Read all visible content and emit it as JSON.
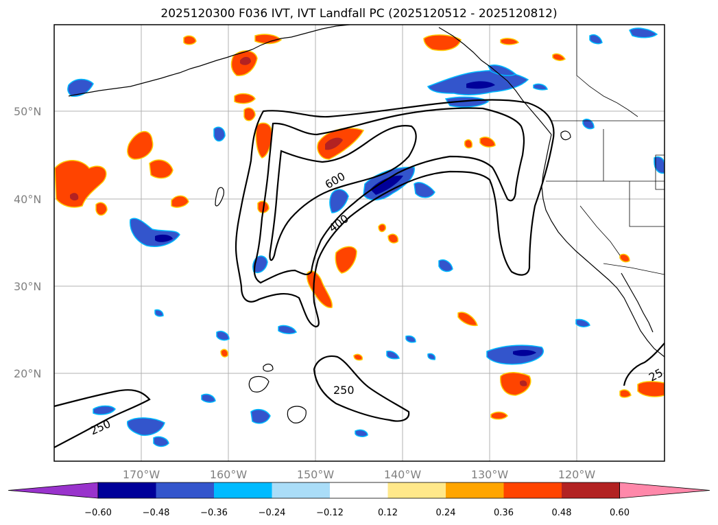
{
  "title": "2025120300 F036 IVT, IVT Landfall PC (2025120512 - 2025120812)",
  "map": {
    "lat_ticks": [
      "50°N",
      "40°N",
      "30°N",
      "20°N"
    ],
    "lon_ticks": [
      "170°W",
      "160°W",
      "150°W",
      "140°W",
      "130°W",
      "120°W"
    ],
    "ivt_contour_labels": [
      "600",
      "400",
      "250",
      "250",
      "25"
    ]
  },
  "colorbar": {
    "tick_labels": [
      "−0.60",
      "−0.48",
      "−0.36",
      "−0.24",
      "−0.12",
      "0.12",
      "0.24",
      "0.36",
      "0.48",
      "0.60"
    ],
    "colors": [
      "#9933cc",
      "#000099",
      "#3355cc",
      "#00bbff",
      "#aaddf8",
      "#ffffff",
      "#ffe88a",
      "#ffa500",
      "#ff4400",
      "#b22222",
      "#ff88aa"
    ]
  }
}
